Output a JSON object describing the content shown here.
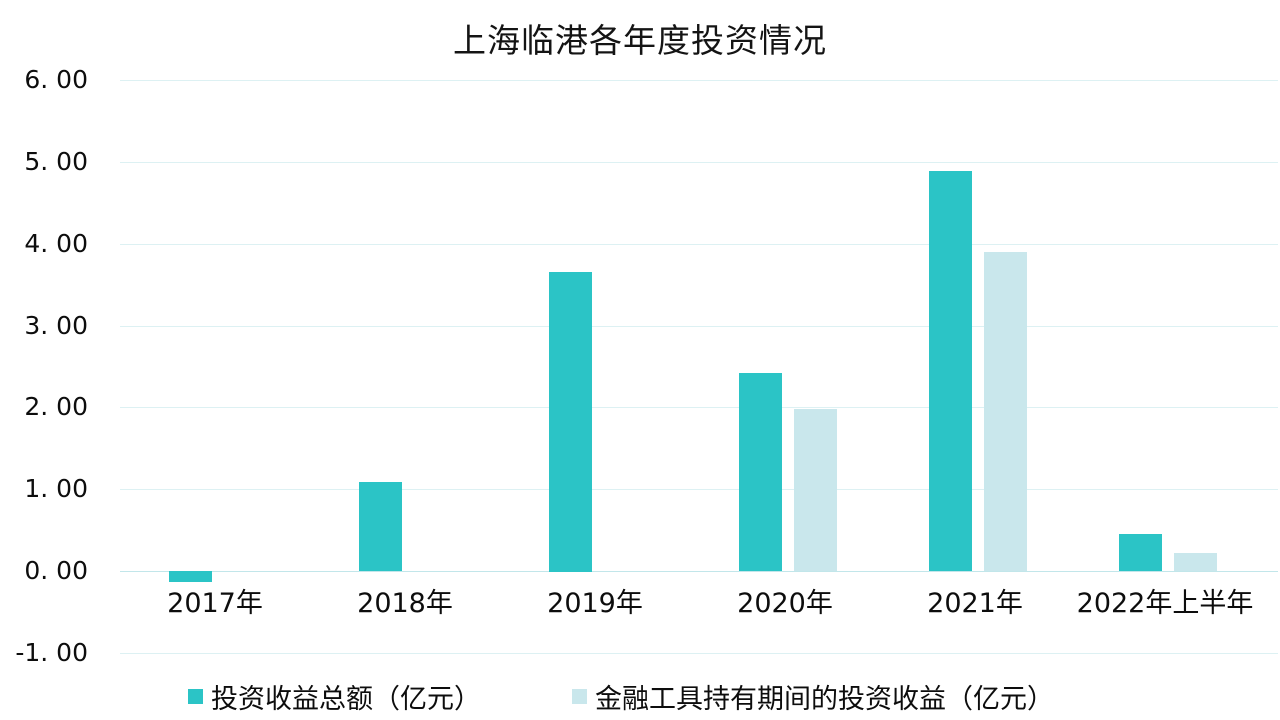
{
  "chart": {
    "title": "上海临港各年度投资情况"
  },
  "chart_data": {
    "type": "bar",
    "title": "上海临港各年度投资情况",
    "categories": [
      "2017年",
      "2018年",
      "2019年",
      "2020年",
      "2021年",
      "2022年上半年"
    ],
    "series": [
      {
        "name": "投资收益总额（亿元）",
        "color": "#2BC4C6",
        "values": [
          -0.14,
          1.09,
          3.66,
          2.42,
          4.89,
          0.45
        ]
      },
      {
        "name": "金融工具持有期间的投资收益（亿元）",
        "color": "#C9E7EC",
        "values": [
          0,
          0,
          0,
          1.98,
          3.9,
          0.22
        ]
      }
    ],
    "ylim": [
      -1,
      6
    ],
    "ytick_step": 1,
    "ytick_labels": [
      "6. 00",
      "5. 00",
      "4. 00",
      "3. 00",
      "2. 00",
      "1. 00",
      "0. 00",
      "-1. 00"
    ],
    "grid": true,
    "legend_position": "bottom"
  },
  "colors": {
    "gridline": "#DDF1F3",
    "zero_line": "#C2E6EA",
    "bar_teal": "#2BC4C6",
    "bar_light": "#C9E7EC",
    "text": "#0d0d0d"
  }
}
